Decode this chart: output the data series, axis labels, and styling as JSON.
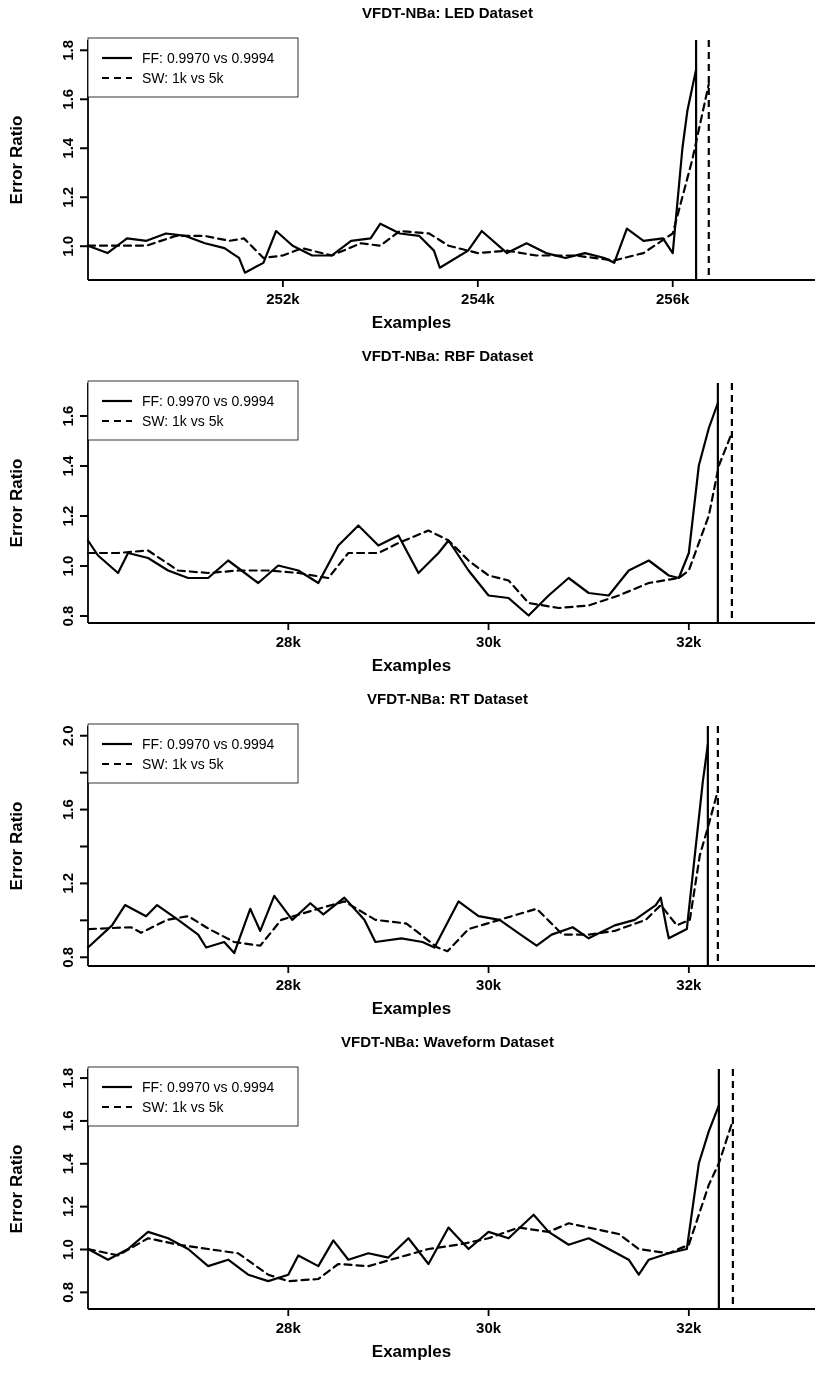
{
  "chart_data": [
    {
      "type": "line",
      "title": "VFDT-NBa: LED Dataset",
      "xlabel": "Examples",
      "ylabel": "Error Ratio",
      "xlim": [
        250000,
        257460
      ],
      "ylim": [
        0.86,
        1.84
      ],
      "xticks": [
        {
          "value": 252000,
          "label": "252k"
        },
        {
          "value": 254000,
          "label": "254k"
        },
        {
          "value": 256000,
          "label": "256k"
        }
      ],
      "yticks": [
        {
          "value": 1.0,
          "label": "1.0"
        },
        1.2,
        1.4,
        1.6,
        1.8
      ],
      "legend": "top left",
      "grid": false,
      "series": [
        {
          "name": "FF: 0.9970 vs 0.9994",
          "color": "#000000",
          "line_style": "solid",
          "x": [
            250000,
            250200,
            250400,
            250600,
            250800,
            251000,
            251200,
            251400,
            251550,
            251610,
            251800,
            251930,
            252100,
            252300,
            252500,
            252700,
            252900,
            253000,
            253200,
            253400,
            253550,
            253610,
            253900,
            254040,
            254300,
            254500,
            254700,
            254900,
            255100,
            255300,
            255400,
            255530,
            255700,
            255900,
            256000,
            256100,
            256150,
            256240
          ],
          "values": [
            1.0,
            0.97,
            1.03,
            1.02,
            1.05,
            1.04,
            1.01,
            0.99,
            0.95,
            0.89,
            0.93,
            1.06,
            1.0,
            0.96,
            0.96,
            1.02,
            1.03,
            1.09,
            1.05,
            1.04,
            0.98,
            0.91,
            0.98,
            1.06,
            0.97,
            1.01,
            0.97,
            0.95,
            0.97,
            0.95,
            0.93,
            1.07,
            1.02,
            1.03,
            0.97,
            1.4,
            1.55,
            1.72
          ]
        },
        {
          "name": "SW: 1k vs 5k",
          "color": "#000000",
          "line_style": "dashed",
          "x": [
            250000,
            250300,
            250600,
            250900,
            251200,
            251450,
            251600,
            251800,
            252000,
            252200,
            252500,
            252800,
            253000,
            253200,
            253500,
            253700,
            254000,
            254300,
            254600,
            255000,
            255400,
            255700,
            256000,
            256200,
            256370
          ],
          "values": [
            1.0,
            1.0,
            1.0,
            1.04,
            1.04,
            1.02,
            1.03,
            0.95,
            0.96,
            0.99,
            0.96,
            1.01,
            1.0,
            1.06,
            1.05,
            1.0,
            0.97,
            0.98,
            0.96,
            0.96,
            0.94,
            0.97,
            1.05,
            1.35,
            1.66
          ]
        }
      ],
      "ref_lines": [
        {
          "axis": "x",
          "value": 256240,
          "color": "#000000",
          "line_style": "solid"
        },
        {
          "axis": "x",
          "value": 256370,
          "color": "#000000",
          "line_style": "dashed"
        }
      ]
    },
    {
      "type": "line",
      "title": "VFDT-NBa: RBF Dataset",
      "xlabel": "Examples",
      "ylabel": "Error Ratio",
      "xlim": [
        26000,
        33260
      ],
      "ylim": [
        0.77,
        1.73
      ],
      "xticks": [
        {
          "value": 28000,
          "label": "28k"
        },
        {
          "value": 30000,
          "label": "30k"
        },
        {
          "value": 32000,
          "label": "32k"
        }
      ],
      "yticks": [
        0.8,
        {
          "value": 1.0,
          "label": "1.0"
        },
        1.2,
        1.4,
        1.6
      ],
      "legend": "top left",
      "grid": false,
      "series": [
        {
          "name": "FF: 0.9970 vs 0.9994",
          "color": "#000000",
          "line_style": "solid",
          "x": [
            26000,
            26100,
            26300,
            26400,
            26600,
            26800,
            27000,
            27200,
            27400,
            27500,
            27700,
            27900,
            28100,
            28300,
            28500,
            28700,
            28900,
            29100,
            29300,
            29500,
            29600,
            29800,
            30000,
            30200,
            30400,
            30600,
            30800,
            31000,
            31200,
            31400,
            31600,
            31800,
            31900,
            32000,
            32100,
            32200,
            32290
          ],
          "values": [
            1.1,
            1.04,
            0.97,
            1.05,
            1.03,
            0.98,
            0.95,
            0.95,
            1.02,
            0.99,
            0.93,
            1.0,
            0.98,
            0.93,
            1.08,
            1.16,
            1.08,
            1.12,
            0.97,
            1.05,
            1.1,
            0.98,
            0.88,
            0.87,
            0.8,
            0.88,
            0.95,
            0.89,
            0.88,
            0.98,
            1.02,
            0.96,
            0.95,
            1.05,
            1.4,
            1.55,
            1.65
          ]
        },
        {
          "name": "SW: 1k vs 5k",
          "color": "#000000",
          "line_style": "dashed",
          "x": [
            26000,
            26300,
            26600,
            26900,
            27200,
            27500,
            27800,
            28100,
            28400,
            28600,
            28900,
            29100,
            29400,
            29600,
            29800,
            30000,
            30200,
            30400,
            30700,
            31000,
            31300,
            31600,
            31900,
            32000,
            32200,
            32300,
            32430
          ],
          "values": [
            1.05,
            1.05,
            1.06,
            0.98,
            0.97,
            0.98,
            0.98,
            0.97,
            0.95,
            1.05,
            1.05,
            1.09,
            1.14,
            1.1,
            1.02,
            0.96,
            0.94,
            0.85,
            0.83,
            0.84,
            0.88,
            0.93,
            0.95,
            0.98,
            1.2,
            1.4,
            1.53
          ]
        }
      ],
      "ref_lines": [
        {
          "axis": "x",
          "value": 32290,
          "color": "#000000",
          "line_style": "solid"
        },
        {
          "axis": "x",
          "value": 32430,
          "color": "#000000",
          "line_style": "dashed"
        }
      ]
    },
    {
      "type": "line",
      "title": "VFDT-NBa: RT Dataset",
      "xlabel": "Examples",
      "ylabel": "Error Ratio",
      "xlim": [
        26000,
        33260
      ],
      "ylim": [
        0.75,
        2.05
      ],
      "xticks": [
        {
          "value": 28000,
          "label": "28k"
        },
        {
          "value": 30000,
          "label": "30k"
        },
        {
          "value": 32000,
          "label": "32k"
        }
      ],
      "yticks": [
        0.8,
        {
          "value": 1.0,
          "label": null
        },
        1.2,
        {
          "value": 1.4,
          "label": null
        },
        1.6,
        {
          "value": 1.8,
          "label": null
        },
        {
          "value": 2.0,
          "label": "2.0"
        }
      ],
      "legend": "top left",
      "grid": false,
      "series": [
        {
          "name": "FF: 0.9970 vs 0.9994",
          "color": "#000000",
          "line_style": "solid",
          "x": [
            26000,
            26240,
            26370,
            26580,
            26690,
            26900,
            27100,
            27180,
            27360,
            27460,
            27620,
            27720,
            27860,
            28040,
            28220,
            28350,
            28560,
            28760,
            28870,
            29130,
            29340,
            29460,
            29700,
            29900,
            30110,
            30320,
            30480,
            30630,
            30840,
            31000,
            31260,
            31460,
            31670,
            31720,
            31780,
            31800,
            31980,
            32060,
            32140,
            32190
          ],
          "values": [
            0.85,
            0.97,
            1.08,
            1.02,
            1.08,
            1.0,
            0.92,
            0.85,
            0.88,
            0.82,
            1.06,
            0.94,
            1.13,
            1.0,
            1.09,
            1.03,
            1.12,
            1.0,
            0.88,
            0.9,
            0.88,
            0.85,
            1.1,
            1.02,
            1.0,
            0.92,
            0.86,
            0.92,
            0.96,
            0.9,
            0.97,
            1.0,
            1.08,
            1.12,
            0.95,
            0.9,
            0.95,
            1.35,
            1.75,
            1.95
          ]
        },
        {
          "name": "SW: 1k vs 5k",
          "color": "#000000",
          "line_style": "dashed",
          "x": [
            26010,
            26430,
            26530,
            26790,
            27000,
            27210,
            27460,
            27720,
            27930,
            28240,
            28560,
            28870,
            29180,
            29490,
            29590,
            29800,
            30110,
            30480,
            30740,
            31000,
            31260,
            31570,
            31720,
            31880,
            32010,
            32110,
            32190,
            32290
          ],
          "values": [
            0.95,
            0.96,
            0.93,
            1.0,
            1.02,
            0.95,
            0.88,
            0.86,
            1.0,
            1.05,
            1.1,
            1.0,
            0.98,
            0.85,
            0.83,
            0.95,
            1.0,
            1.06,
            0.92,
            0.92,
            0.94,
            1.0,
            1.08,
            0.97,
            1.0,
            1.35,
            1.5,
            1.7
          ]
        }
      ],
      "ref_lines": [
        {
          "axis": "x",
          "value": 32190,
          "color": "#000000",
          "line_style": "solid"
        },
        {
          "axis": "x",
          "value": 32290,
          "color": "#000000",
          "line_style": "dashed"
        }
      ]
    },
    {
      "type": "line",
      "title": "VFDT-NBa: Waveform Dataset",
      "xlabel": "Examples",
      "ylabel": "Error Ratio",
      "xlim": [
        26000,
        33260
      ],
      "ylim": [
        0.72,
        1.84
      ],
      "xticks": [
        {
          "value": 28000,
          "label": "28k"
        },
        {
          "value": 30000,
          "label": "30k"
        },
        {
          "value": 32000,
          "label": "32k"
        }
      ],
      "yticks": [
        0.8,
        {
          "value": 1.0,
          "label": "1.0"
        },
        1.2,
        1.4,
        1.6,
        1.8
      ],
      "legend": "top left",
      "grid": false,
      "series": [
        {
          "name": "FF: 0.9970 vs 0.9994",
          "color": "#000000",
          "line_style": "solid",
          "x": [
            26000,
            26200,
            26400,
            26600,
            26800,
            27000,
            27200,
            27400,
            27600,
            27800,
            28000,
            28100,
            28300,
            28450,
            28600,
            28800,
            29000,
            29200,
            29400,
            29600,
            29800,
            30000,
            30200,
            30450,
            30600,
            30800,
            31000,
            31200,
            31400,
            31500,
            31600,
            31800,
            31980,
            32100,
            32200,
            32300
          ],
          "values": [
            1.0,
            0.95,
            1.0,
            1.08,
            1.05,
            1.0,
            0.92,
            0.95,
            0.88,
            0.85,
            0.88,
            0.97,
            0.92,
            1.04,
            0.95,
            0.98,
            0.96,
            1.05,
            0.93,
            1.1,
            1.0,
            1.08,
            1.05,
            1.16,
            1.08,
            1.02,
            1.05,
            1.0,
            0.95,
            0.88,
            0.95,
            0.98,
            1.0,
            1.4,
            1.55,
            1.67
          ]
        },
        {
          "name": "SW: 1k vs 5k",
          "color": "#000000",
          "line_style": "dashed",
          "x": [
            26000,
            26300,
            26600,
            26900,
            27200,
            27500,
            27800,
            28000,
            28300,
            28500,
            28800,
            29100,
            29400,
            29700,
            30000,
            30300,
            30600,
            30800,
            31000,
            31300,
            31500,
            31800,
            32000,
            32200,
            32300,
            32440
          ],
          "values": [
            1.0,
            0.97,
            1.05,
            1.02,
            1.0,
            0.98,
            0.88,
            0.85,
            0.86,
            0.93,
            0.92,
            0.96,
            1.0,
            1.02,
            1.05,
            1.1,
            1.08,
            1.12,
            1.1,
            1.07,
            1.0,
            0.98,
            1.02,
            1.3,
            1.4,
            1.6
          ]
        }
      ],
      "ref_lines": [
        {
          "axis": "x",
          "value": 32300,
          "color": "#000000",
          "line_style": "solid"
        },
        {
          "axis": "x",
          "value": 32440,
          "color": "#000000",
          "line_style": "dashed"
        }
      ]
    }
  ]
}
